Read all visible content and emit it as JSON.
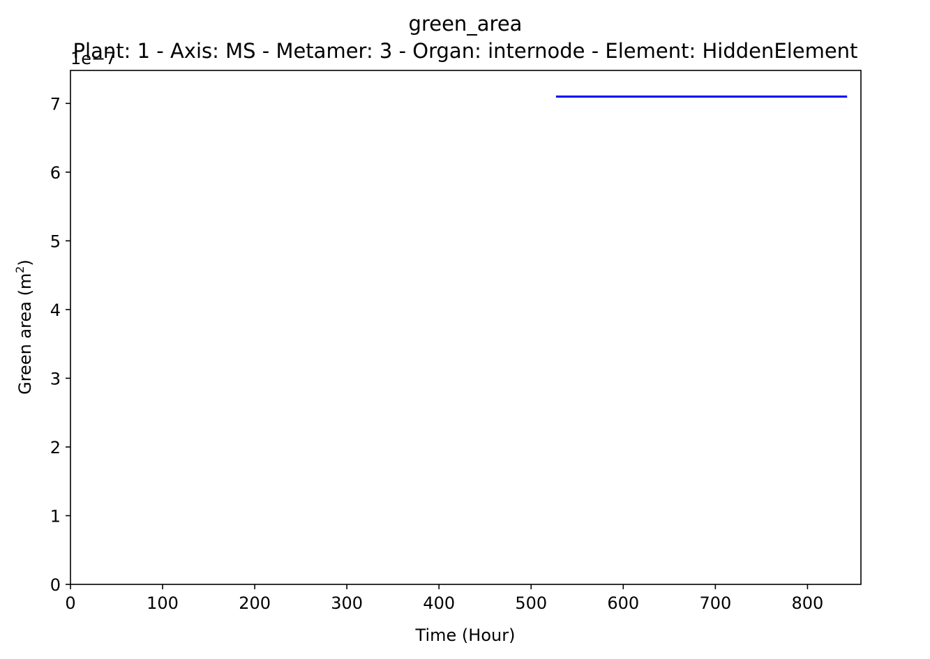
{
  "chart_data": {
    "type": "line",
    "title": "green_area",
    "subtitle": "Plant: 1 - Axis: MS - Metamer: 3 - Organ: internode - Element: HiddenElement",
    "xlabel": "Time (Hour)",
    "ylabel_prefix": "Green area (m",
    "ylabel_sup": "2",
    "ylabel_suffix": ")",
    "y_offset_label": "1e−7",
    "xlim": [
      0,
      858
    ],
    "ylim": [
      0,
      7.48
    ],
    "x_ticks": [
      0,
      100,
      200,
      300,
      400,
      500,
      600,
      700,
      800
    ],
    "x_tick_labels": [
      "0",
      "100",
      "200",
      "300",
      "400",
      "500",
      "600",
      "700",
      "800"
    ],
    "y_ticks": [
      0,
      1,
      2,
      3,
      4,
      5,
      6,
      7
    ],
    "y_tick_labels": [
      "0",
      "1",
      "2",
      "3",
      "4",
      "5",
      "6",
      "7"
    ],
    "y_scale_note": "values in units of 1e-7 m^2",
    "grid": false,
    "series": [
      {
        "color": "#0000ff",
        "x": [
          527,
          843
        ],
        "y": [
          7.1,
          7.1
        ]
      }
    ]
  }
}
